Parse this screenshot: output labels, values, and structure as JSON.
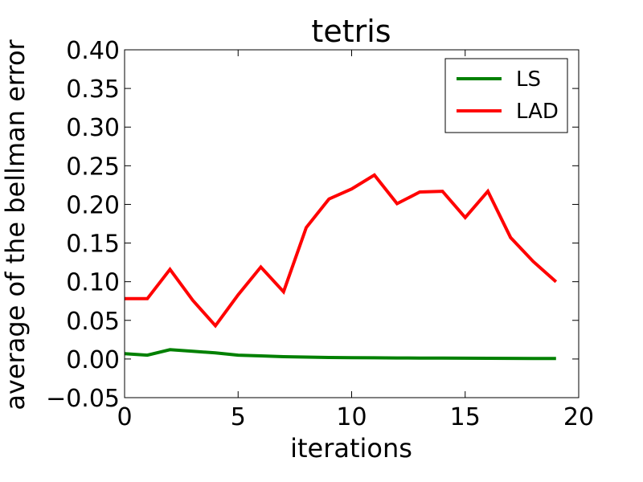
{
  "chart_data": {
    "type": "line",
    "title": "tetris",
    "xlabel": "iterations",
    "ylabel": "average of the bellman error",
    "xlim": [
      0,
      20
    ],
    "ylim": [
      -0.05,
      0.4
    ],
    "xticks": [
      0,
      5,
      10,
      15,
      20
    ],
    "xtick_labels": [
      "0",
      "5",
      "10",
      "15",
      "20"
    ],
    "yticks": [
      -0.05,
      0.0,
      0.05,
      0.1,
      0.15,
      0.2,
      0.25,
      0.3,
      0.35,
      0.4
    ],
    "ytick_labels": [
      "−0.05",
      "0.00",
      "0.05",
      "0.10",
      "0.15",
      "0.20",
      "0.25",
      "0.30",
      "0.35",
      "0.40"
    ],
    "grid": false,
    "legend_position": "top-right",
    "x": [
      0,
      1,
      2,
      3,
      4,
      5,
      6,
      7,
      8,
      9,
      10,
      11,
      12,
      13,
      14,
      15,
      16,
      17,
      18,
      19
    ],
    "series": [
      {
        "name": "LS",
        "color": "#008000",
        "values": [
          0.007,
          0.005,
          0.012,
          0.01,
          0.008,
          0.005,
          0.004,
          0.003,
          0.0025,
          0.002,
          0.0017,
          0.0015,
          0.0013,
          0.0012,
          0.0011,
          0.001,
          0.0009,
          0.0008,
          0.0007,
          0.0006
        ]
      },
      {
        "name": "LAD",
        "color": "#ff0000",
        "values": [
          0.078,
          0.078,
          0.116,
          0.076,
          0.043,
          0.083,
          0.119,
          0.087,
          0.17,
          0.207,
          0.22,
          0.238,
          0.201,
          0.216,
          0.217,
          0.183,
          0.217,
          0.157,
          0.126,
          0.1
        ]
      }
    ]
  }
}
